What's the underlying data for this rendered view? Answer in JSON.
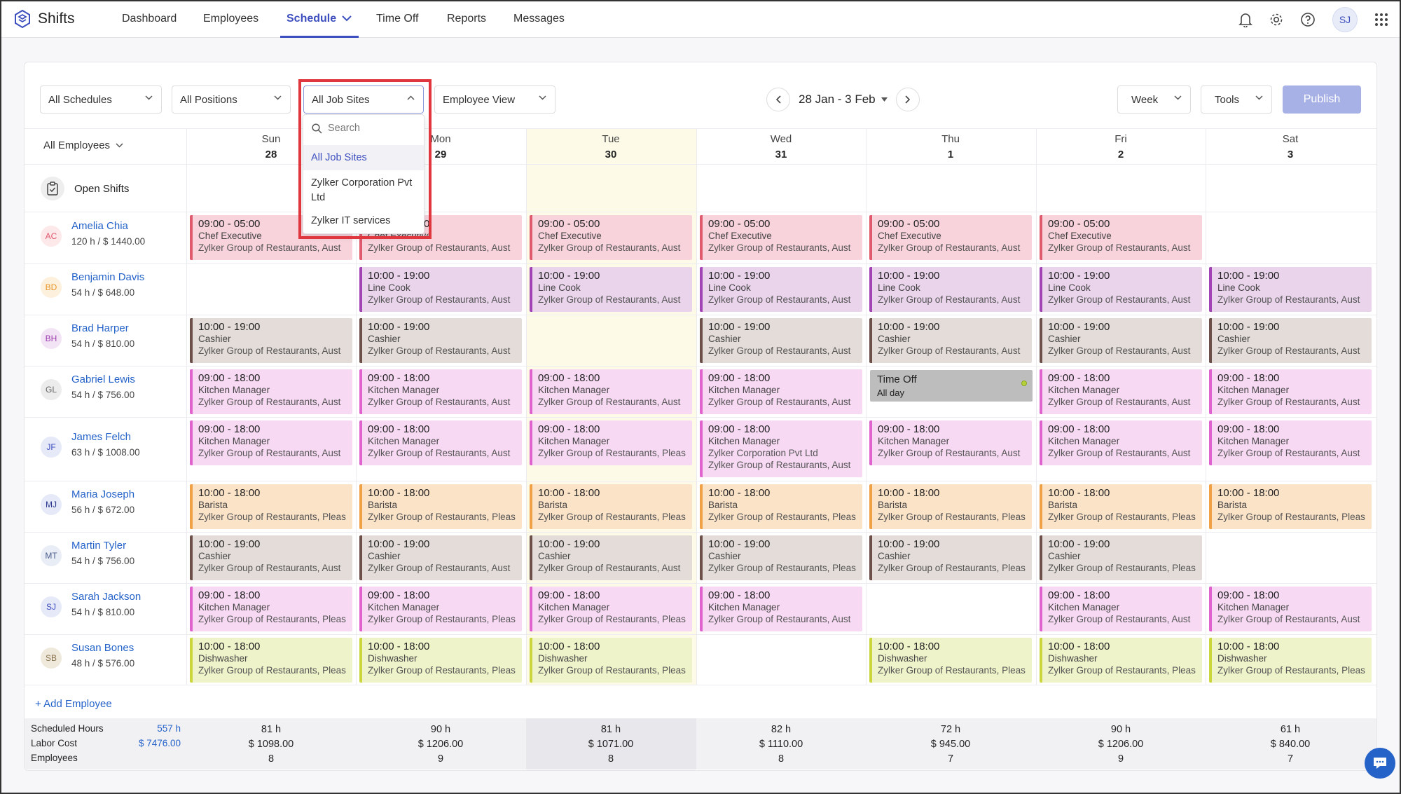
{
  "app": {
    "name": "Shifts"
  },
  "nav": {
    "items": [
      "Dashboard",
      "Employees",
      "Schedule",
      "Time Off",
      "Reports",
      "Messages"
    ],
    "active": "Schedule"
  },
  "user": {
    "initials": "SJ"
  },
  "filters": {
    "schedules": "All Schedules",
    "positions": "All Positions",
    "job_sites": "All Job Sites",
    "view": "Employee View",
    "employees": "All Employees"
  },
  "dropdown": {
    "search_placeholder": "Search",
    "options": [
      "All Job Sites",
      "Zylker Corporation Pvt Ltd",
      "Zylker IT services"
    ],
    "selected": "All Job Sites"
  },
  "date_range": "28 Jan - 3 Feb",
  "toolbar": {
    "week": "Week",
    "tools": "Tools",
    "publish": "Publish"
  },
  "days": [
    {
      "name": "Sun",
      "num": "28"
    },
    {
      "name": "Mon",
      "num": "29"
    },
    {
      "name": "Tue",
      "num": "30"
    },
    {
      "name": "Wed",
      "num": "31"
    },
    {
      "name": "Thu",
      "num": "1"
    },
    {
      "name": "Fri",
      "num": "2"
    },
    {
      "name": "Sat",
      "num": "3"
    }
  ],
  "open_shifts_label": "Open Shifts",
  "employees": [
    {
      "initials": "AC",
      "name": "Amelia Chia",
      "summary": "120 h / $ 1440.00"
    },
    {
      "initials": "BD",
      "name": "Benjamin Davis",
      "summary": "54 h / $ 648.00"
    },
    {
      "initials": "BH",
      "name": "Brad Harper",
      "summary": "54 h / $ 810.00"
    },
    {
      "initials": "GL",
      "name": "Gabriel Lewis",
      "summary": "54 h / $ 756.00"
    },
    {
      "initials": "JF",
      "name": "James Felch",
      "summary": "63 h / $ 1008.00"
    },
    {
      "initials": "MJ",
      "name": "Maria Joseph",
      "summary": "56 h / $ 672.00"
    },
    {
      "initials": "MT",
      "name": "Martin Tyler",
      "summary": "54 h / $ 756.00"
    },
    {
      "initials": "SJ",
      "name": "Sarah Jackson",
      "summary": "54 h / $ 810.00"
    },
    {
      "initials": "SB",
      "name": "Susan Bones",
      "summary": "48 h / $ 576.00"
    }
  ],
  "shift_text": {
    "chef": {
      "time": "09:00 - 05:00",
      "role": "Chef Executive"
    },
    "linecook": {
      "time": "10:00 - 19:00",
      "role": "Line Cook"
    },
    "cashier_long": {
      "time": "10:00 - 19:00",
      "role": "Cashier"
    },
    "km": {
      "time": "09:00 - 18:00",
      "role": "Kitchen Manager"
    },
    "barista": {
      "time": "10:00 - 18:00",
      "role": "Barista"
    },
    "dish": {
      "time": "10:00 - 18:00",
      "role": "Dishwasher"
    }
  },
  "sites": {
    "aust": "Zylker Group of Restaurants, Aust",
    "plea": "Zylker Group of Restaurants, Pleas",
    "corp": "Zylker Corporation Pvt Ltd"
  },
  "time_off": {
    "label": "Time Off",
    "sub": "All day"
  },
  "add_employee": "+ Add Employee",
  "summary": {
    "labels": [
      "Scheduled Hours",
      "Labor Cost",
      "Employees"
    ],
    "total_hours": "557 h",
    "total_cost": "$ 7476.00",
    "cols": [
      {
        "h": "81 h",
        "c": "$ 1098.00",
        "e": "8"
      },
      {
        "h": "90 h",
        "c": "$ 1206.00",
        "e": "9"
      },
      {
        "h": "81 h",
        "c": "$ 1071.00",
        "e": "8"
      },
      {
        "h": "82 h",
        "c": "$ 1110.00",
        "e": "8"
      },
      {
        "h": "72 h",
        "c": "$ 945.00",
        "e": "7"
      },
      {
        "h": "90 h",
        "c": "$ 1206.00",
        "e": "9"
      },
      {
        "h": "61 h",
        "c": "$ 840.00",
        "e": "7"
      }
    ]
  },
  "colors": {
    "accent": "#3d4fbf",
    "chef_bg": "#f8d3dc",
    "chef_border": "#e05a6e",
    "linecook_bg": "#ead4ec",
    "linecook_border": "#a142b5",
    "cashier_bg": "#e3dcd8",
    "cashier_border": "#6b4f48",
    "km_bg": "#f7d9f3",
    "km_border": "#e062cf",
    "barista_bg": "#fbe3c8",
    "barista_border": "#f0a045",
    "dish_bg": "#eff3c9",
    "dish_border": "#cbd53c",
    "highlight": "#e0373f"
  }
}
